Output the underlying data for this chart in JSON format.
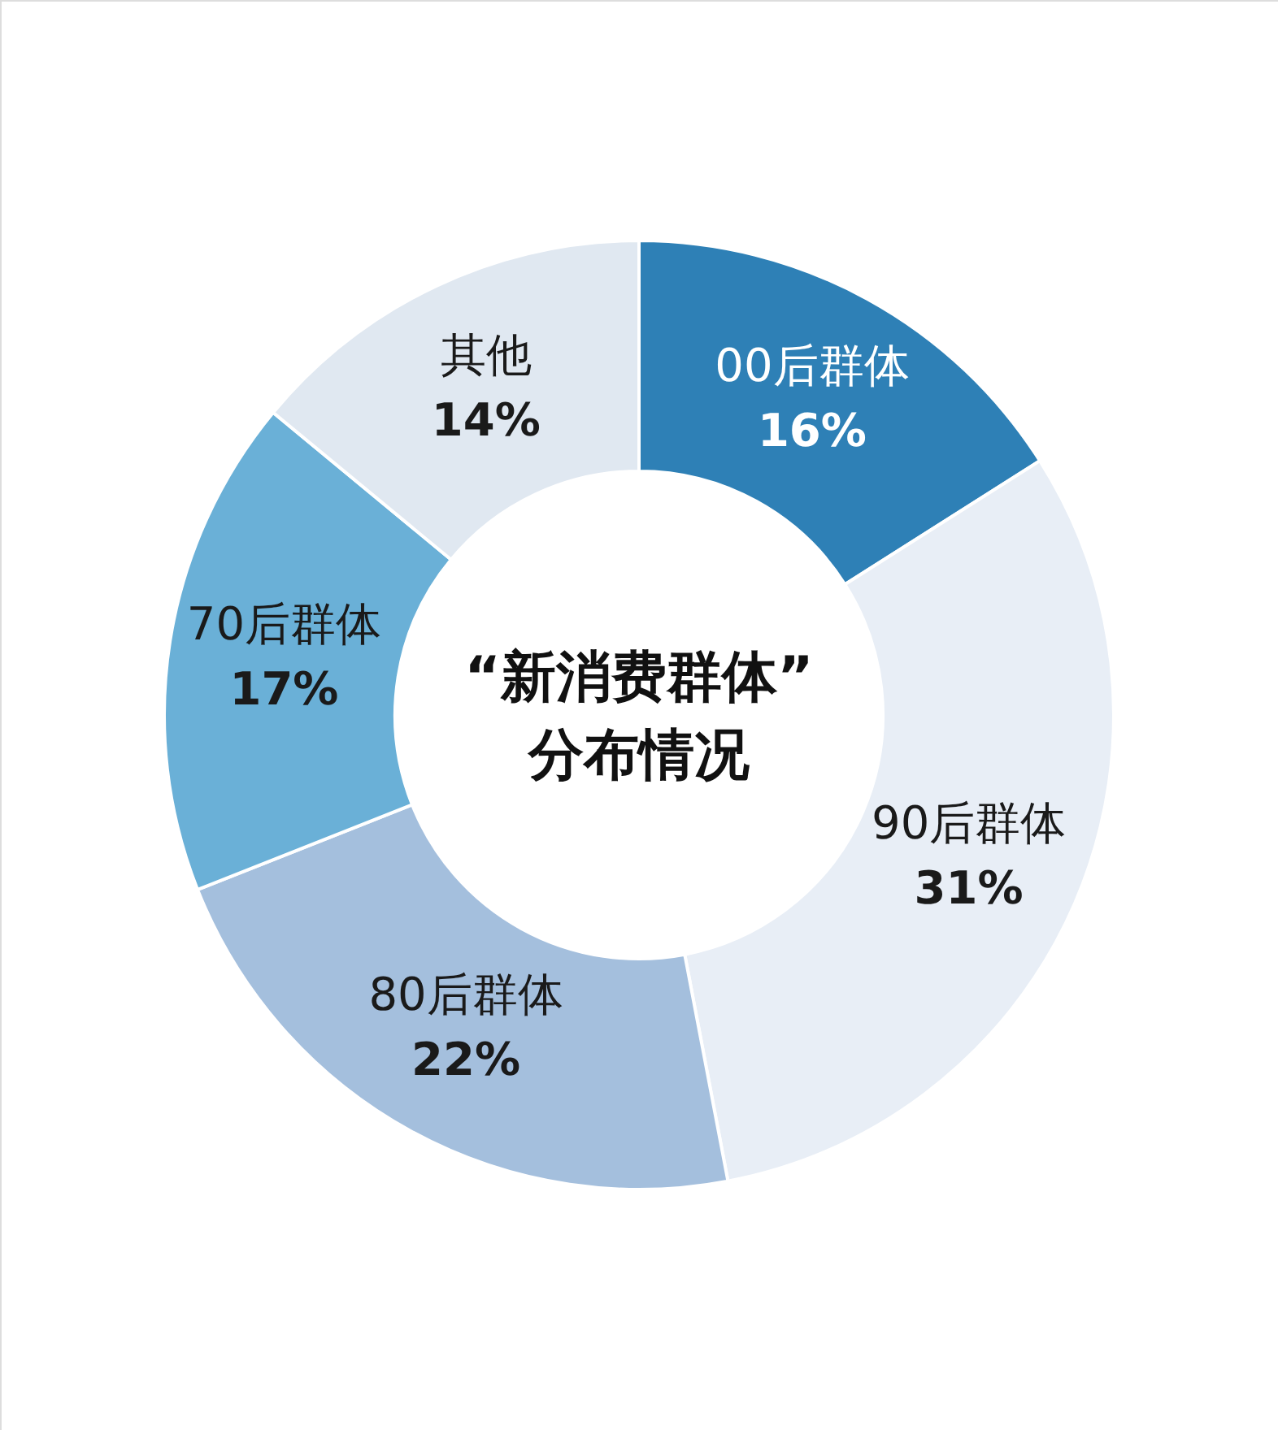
{
  "chart_data": {
    "type": "donut",
    "title": "“新消费群体”",
    "subtitle": "分布情况",
    "categories": [
      "00后群体",
      "90后群体",
      "80后群体",
      "70后群体",
      "其他"
    ],
    "values": [
      16,
      31,
      22,
      17,
      14
    ],
    "value_labels": [
      "16%",
      "31%",
      "22%",
      "17%",
      "14%"
    ],
    "colors": [
      "#2e80b6",
      "#e8eef6",
      "#a4bfdd",
      "#6ab0d7",
      "#e0e8f1"
    ]
  }
}
